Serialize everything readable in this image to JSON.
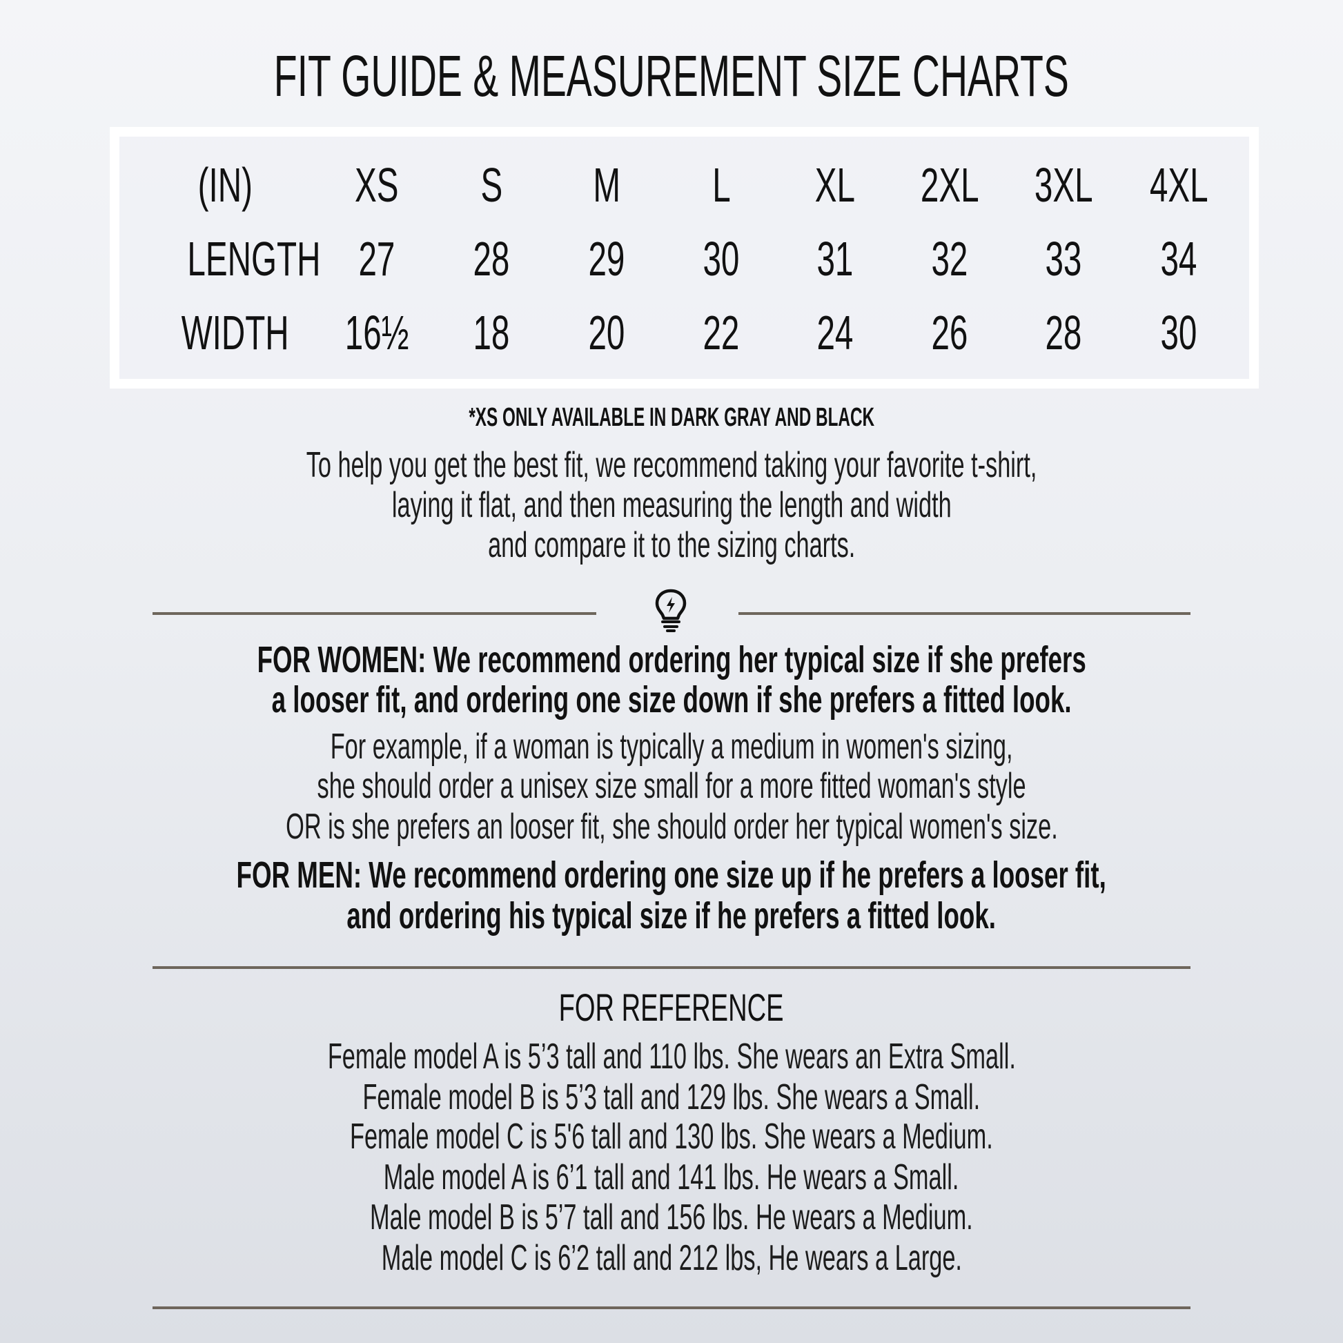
{
  "title": "FIT GUIDE & MEASUREMENT SIZE CHARTS",
  "size_table": {
    "header": [
      "(IN)",
      "XS",
      "S",
      "M",
      "L",
      "XL",
      "2XL",
      "3XL",
      "4XL"
    ],
    "rows": [
      [
        "LENGTH",
        "27",
        "28",
        "29",
        "30",
        "31",
        "32",
        "33",
        "34"
      ],
      [
        "WIDTH",
        "16½",
        "18",
        "20",
        "22",
        "24",
        "26",
        "28",
        "30"
      ]
    ]
  },
  "xs_note": "*XS ONLY AVAILABLE IN DARK GRAY AND BLACK",
  "intro_lines": [
    "To help you get the best fit, we recommend taking your favorite t-shirt,",
    "laying it flat, and then measuring the length and width",
    "and compare it to the sizing charts."
  ],
  "divider_icon": "lightbulb-icon",
  "women_lines": [
    "FOR WOMEN: We recommend ordering her typical size if she prefers",
    "a looser fit, and ordering one size down if she prefers a fitted look."
  ],
  "example_lines": [
    "For example, if a woman is typically a medium in women's sizing,",
    "she should order a unisex size small for a more fitted woman's style",
    "OR is she prefers an looser fit, she should order her typical women's size."
  ],
  "men_lines": [
    "FOR MEN: We recommend ordering one size up if he prefers a looser fit,",
    "and ordering his typical size if he prefers a fitted look."
  ],
  "reference": {
    "heading": "FOR REFERENCE",
    "lines": [
      "Female model A is 5’3 tall and 110 lbs. She wears an Extra Small.",
      "Female model B is 5’3 tall and 129 lbs. She wears a Small.",
      "Female model C is 5'6 tall and 130 lbs. She wears a Medium.",
      "Male model A is 6’1 tall and 141 lbs. He wears a Small.",
      "Male model B is 5’7 tall and 156 lbs. He wears a Medium.",
      "Male model C is 6’2 tall and 212 lbs, He wears a Large."
    ]
  },
  "colors": {
    "divider": "#6e665c",
    "text": "#111111",
    "table_border": "#ffffff"
  }
}
